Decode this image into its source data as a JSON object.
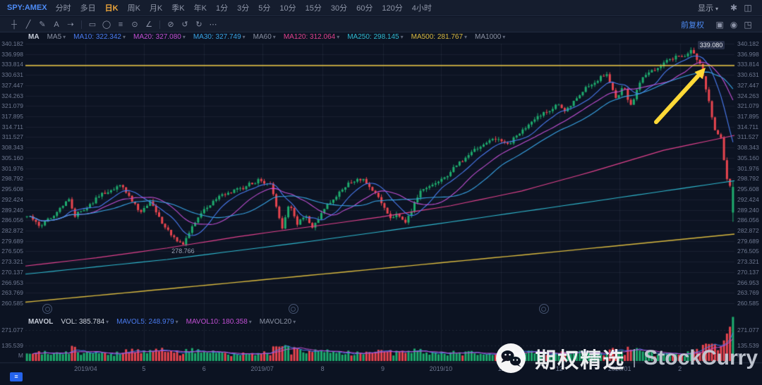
{
  "topbar": {
    "symbol": "SPY:AMEX",
    "tabs": [
      {
        "label": "分时"
      },
      {
        "label": "多日"
      },
      {
        "label": "日K",
        "active": true
      },
      {
        "label": "周K"
      },
      {
        "label": "月K"
      },
      {
        "label": "季K"
      },
      {
        "label": "年K"
      },
      {
        "label": "1分"
      },
      {
        "label": "3分"
      },
      {
        "label": "5分"
      },
      {
        "label": "10分"
      },
      {
        "label": "15分"
      },
      {
        "label": "30分"
      },
      {
        "label": "60分"
      },
      {
        "label": "120分"
      },
      {
        "label": "4小时"
      }
    ],
    "right": {
      "display_label": "显示",
      "display_caret": "▾",
      "icons": [
        {
          "name": "settings-gear-icon",
          "glyph": "✱"
        },
        {
          "name": "layout-panels-icon",
          "glyph": "◫"
        }
      ]
    }
  },
  "toolbar": {
    "tools": [
      {
        "name": "crosshair-tool",
        "glyph": "┼"
      },
      {
        "name": "trendline-tool",
        "glyph": "╱"
      },
      {
        "name": "brush-tool",
        "glyph": "✎"
      },
      {
        "name": "text-tool",
        "glyph": "A"
      },
      {
        "name": "arrow-tool",
        "glyph": "⇢"
      },
      {
        "name": "toolbar-separator",
        "sep": true
      },
      {
        "name": "rectangle-tool",
        "glyph": "▭"
      },
      {
        "name": "ellipse-tool",
        "glyph": "◯"
      },
      {
        "name": "fibonacci-tool",
        "glyph": "≡"
      },
      {
        "name": "magnet-tool",
        "glyph": "⊙"
      },
      {
        "name": "measure-tool",
        "glyph": "∠"
      },
      {
        "name": "toolbar-separator",
        "sep": true
      },
      {
        "name": "eraser-tool",
        "glyph": "⊘"
      },
      {
        "name": "undo-icon",
        "glyph": "↺"
      },
      {
        "name": "redo-icon",
        "glyph": "↻"
      },
      {
        "name": "more-tools-icon",
        "glyph": "⋯"
      }
    ],
    "right": {
      "adjust_label": "前复权",
      "icons": [
        {
          "name": "save-layout-icon",
          "glyph": "▣"
        },
        {
          "name": "screenshot-camera-icon",
          "glyph": "◉"
        },
        {
          "name": "fullscreen-icon",
          "glyph": "◳"
        }
      ]
    }
  },
  "indicators": {
    "group_label": "MA",
    "items": [
      {
        "label": "MA5",
        "value": "",
        "color": "#8a91a3"
      },
      {
        "label": "MA10",
        "value": "322.342",
        "color": "#4a7bf0"
      },
      {
        "label": "MA20",
        "value": "327.080",
        "color": "#c24fd4"
      },
      {
        "label": "MA30",
        "value": "327.749",
        "color": "#38a3e4"
      },
      {
        "label": "MA60",
        "value": "",
        "color": "#8a91a3"
      },
      {
        "label": "MA120",
        "value": "312.064",
        "color": "#e0418d"
      },
      {
        "label": "MA250",
        "value": "298.145",
        "color": "#2fb8cf"
      },
      {
        "label": "MA500",
        "value": "281.767",
        "color": "#d9b93f"
      },
      {
        "label": "MA1000",
        "value": "",
        "color": "#8a91a3"
      }
    ]
  },
  "volume_indicators": {
    "group_label": "MAVOL",
    "items": [
      {
        "label": "VOL",
        "value": "385.784",
        "color": "#cfd4de"
      },
      {
        "label": "MAVOL5",
        "value": "248.979",
        "color": "#4a7bf0"
      },
      {
        "label": "MAVOL10",
        "value": "180.358",
        "color": "#c24fd4"
      },
      {
        "label": "MAVOL20",
        "value": "",
        "color": "#8a91a3"
      }
    ]
  },
  "price_axis": {
    "labels": [
      "340.182",
      "336.998",
      "333.814",
      "330.631",
      "327.447",
      "324.263",
      "321.079",
      "317.895",
      "314.711",
      "311.527",
      "308.343",
      "305.160",
      "301.976",
      "298.792",
      "295.608",
      "292.424",
      "289.240",
      "286.056",
      "282.872",
      "279.689",
      "276.505",
      "273.321",
      "270.137",
      "266.953",
      "263.769",
      "260.585"
    ]
  },
  "volume_axis": {
    "labels": [
      "271.077",
      "135.539"
    ],
    "unit": "M",
    "max": 271.077
  },
  "x_axis": {
    "labels": [
      {
        "t": 0.085,
        "label": "2019/04"
      },
      {
        "t": 0.167,
        "label": "5"
      },
      {
        "t": 0.252,
        "label": "6"
      },
      {
        "t": 0.334,
        "label": "2019/07"
      },
      {
        "t": 0.419,
        "label": "8"
      },
      {
        "t": 0.504,
        "label": "9"
      },
      {
        "t": 0.586,
        "label": "2019/10"
      },
      {
        "t": 0.671,
        "label": "11"
      },
      {
        "t": 0.753,
        "label": "12"
      },
      {
        "t": 0.838,
        "label": "2020/01"
      },
      {
        "t": 0.923,
        "label": "2"
      }
    ]
  },
  "annotations": {
    "high_label": "339.080",
    "high_t": 0.94,
    "low_label": "278.766",
    "low_t": 0.222,
    "hline_price": 333.5,
    "markers_t": [
      0.03,
      0.377,
      0.73
    ]
  },
  "watermark": {
    "name_cn": "期权精选",
    "name_en": "StockCurry"
  },
  "footer": {
    "range_glyph": "≡"
  },
  "chart_data": {
    "type": "candlestick",
    "symbol": "SPY",
    "period": "daily",
    "adjustment": "前复权",
    "n_candles": 236,
    "price_range": [
      260.585,
      340.182
    ],
    "up_color": "#1eab6e",
    "down_color": "#e8454f",
    "anchors": [
      [
        0,
        287.5
      ],
      [
        0.02,
        284
      ],
      [
        0.06,
        292.5
      ],
      [
        0.068,
        287.5
      ],
      [
        0.11,
        294.5
      ],
      [
        0.135,
        296.5
      ],
      [
        0.16,
        288.5
      ],
      [
        0.175,
        292
      ],
      [
        0.195,
        284
      ],
      [
        0.215,
        279.5
      ],
      [
        0.222,
        279
      ],
      [
        0.245,
        288
      ],
      [
        0.27,
        293
      ],
      [
        0.3,
        295.5
      ],
      [
        0.33,
        298.5
      ],
      [
        0.345,
        297
      ],
      [
        0.355,
        288.5
      ],
      [
        0.362,
        283.5
      ],
      [
        0.372,
        291
      ],
      [
        0.382,
        284.5
      ],
      [
        0.395,
        287.5
      ],
      [
        0.405,
        284
      ],
      [
        0.425,
        290.5
      ],
      [
        0.455,
        297.5
      ],
      [
        0.475,
        298.5
      ],
      [
        0.495,
        294
      ],
      [
        0.515,
        286.5
      ],
      [
        0.525,
        288.5
      ],
      [
        0.535,
        285
      ],
      [
        0.56,
        296
      ],
      [
        0.585,
        298
      ],
      [
        0.61,
        303
      ],
      [
        0.64,
        308.5
      ],
      [
        0.665,
        311.5
      ],
      [
        0.68,
        309
      ],
      [
        0.7,
        313.5
      ],
      [
        0.73,
        318.5
      ],
      [
        0.75,
        321.5
      ],
      [
        0.762,
        319.5
      ],
      [
        0.79,
        326.5
      ],
      [
        0.81,
        329.5
      ],
      [
        0.82,
        331
      ],
      [
        0.835,
        323.5
      ],
      [
        0.845,
        327
      ],
      [
        0.855,
        320.9
      ],
      [
        0.87,
        329
      ],
      [
        0.89,
        332.5
      ],
      [
        0.91,
        335.5
      ],
      [
        0.93,
        336.5
      ],
      [
        0.94,
        338.3
      ],
      [
        0.948,
        336.2
      ],
      [
        0.955,
        332.6
      ],
      [
        0.966,
        322.4
      ],
      [
        0.975,
        312.65
      ],
      [
        0.983,
        311.5
      ],
      [
        0.992,
        297.5
      ],
      [
        1,
        296.26
      ]
    ],
    "last_day": {
      "open": 288.4,
      "high": 297.9,
      "low": 285.54,
      "close": 296.26,
      "volume_m": 385.784
    },
    "last_volumes": [
      95,
      130,
      180,
      240,
      300,
      385.784
    ],
    "ma_overlays": [
      {
        "name": "MA120",
        "color": "#e0418d",
        "points": [
          [
            0,
            272
          ],
          [
            0.1,
            274.5
          ],
          [
            0.2,
            277.5
          ],
          [
            0.3,
            281
          ],
          [
            0.4,
            284
          ],
          [
            0.5,
            287
          ],
          [
            0.6,
            290.5
          ],
          [
            0.7,
            295
          ],
          [
            0.8,
            301
          ],
          [
            0.9,
            307.5
          ],
          [
            1,
            312.064
          ]
        ]
      },
      {
        "name": "MA250",
        "color": "#2fb8cf",
        "points": [
          [
            0,
            269.5
          ],
          [
            0.2,
            274
          ],
          [
            0.4,
            279.5
          ],
          [
            0.6,
            285.5
          ],
          [
            0.8,
            291.8
          ],
          [
            1,
            298.145
          ]
        ]
      },
      {
        "name": "MA500",
        "color": "#d9b93f",
        "points": [
          [
            0,
            260.9
          ],
          [
            0.25,
            266
          ],
          [
            0.5,
            271.2
          ],
          [
            0.75,
            276.4
          ],
          [
            1,
            281.767
          ]
        ]
      }
    ],
    "computed_ma": [
      {
        "name": "MA10",
        "window": 10,
        "color": "#4a7bf0"
      },
      {
        "name": "MA20",
        "window": 20,
        "color": "#c24fd4"
      },
      {
        "name": "MA30",
        "window": 30,
        "color": "#38a3e4"
      }
    ],
    "key_values": {
      "visible_high": 339.08,
      "visible_low": 278.766,
      "ma10": 322.342,
      "ma20": 327.08,
      "ma30": 327.749,
      "ma120": 312.064,
      "ma250": 298.145,
      "ma500": 281.767,
      "vol_m": 385.784,
      "mavol5_m": 248.979,
      "mavol10_m": 180.358
    }
  }
}
